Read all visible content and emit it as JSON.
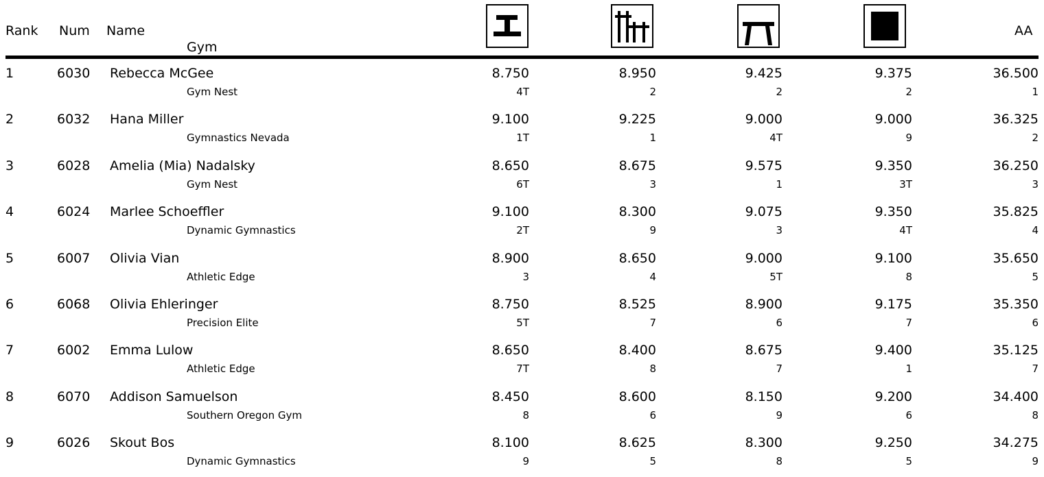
{
  "header": {
    "rank": "Rank",
    "num": "Num",
    "name": "Name",
    "gym": "Gym",
    "aa": "AA",
    "events": [
      {
        "icon": "vault-icon"
      },
      {
        "icon": "uneven-bars-icon"
      },
      {
        "icon": "beam-icon"
      },
      {
        "icon": "floor-icon"
      }
    ]
  },
  "rows": [
    {
      "rank": "1",
      "num": "6030",
      "name": "Rebecca McGee",
      "gym": "Gym Nest",
      "scores": [
        "8.750",
        "8.950",
        "9.425",
        "9.375"
      ],
      "places": [
        "4T",
        "2",
        "2",
        "2"
      ],
      "aa": "36.500",
      "aa_place": "1"
    },
    {
      "rank": "2",
      "num": "6032",
      "name": "Hana Miller",
      "gym": "Gymnastics Nevada",
      "scores": [
        "9.100",
        "9.225",
        "9.000",
        "9.000"
      ],
      "places": [
        "1T",
        "1",
        "4T",
        "9"
      ],
      "aa": "36.325",
      "aa_place": "2"
    },
    {
      "rank": "3",
      "num": "6028",
      "name": "Amelia (Mia) Nadalsky",
      "gym": "Gym Nest",
      "scores": [
        "8.650",
        "8.675",
        "9.575",
        "9.350"
      ],
      "places": [
        "6T",
        "3",
        "1",
        "3T"
      ],
      "aa": "36.250",
      "aa_place": "3"
    },
    {
      "rank": "4",
      "num": "6024",
      "name": "Marlee Schoeffler",
      "gym": "Dynamic Gymnastics",
      "scores": [
        "9.100",
        "8.300",
        "9.075",
        "9.350"
      ],
      "places": [
        "2T",
        "9",
        "3",
        "4T"
      ],
      "aa": "35.825",
      "aa_place": "4"
    },
    {
      "rank": "5",
      "num": "6007",
      "name": "Olivia Vian",
      "gym": "Athletic Edge",
      "scores": [
        "8.900",
        "8.650",
        "9.000",
        "9.100"
      ],
      "places": [
        "3",
        "4",
        "5T",
        "8"
      ],
      "aa": "35.650",
      "aa_place": "5"
    },
    {
      "rank": "6",
      "num": "6068",
      "name": "Olivia Ehleringer",
      "gym": "Precision Elite",
      "scores": [
        "8.750",
        "8.525",
        "8.900",
        "9.175"
      ],
      "places": [
        "5T",
        "7",
        "6",
        "7"
      ],
      "aa": "35.350",
      "aa_place": "6"
    },
    {
      "rank": "7",
      "num": "6002",
      "name": "Emma Lulow",
      "gym": "Athletic Edge",
      "scores": [
        "8.650",
        "8.400",
        "8.675",
        "9.400"
      ],
      "places": [
        "7T",
        "8",
        "7",
        "1"
      ],
      "aa": "35.125",
      "aa_place": "7"
    },
    {
      "rank": "8",
      "num": "6070",
      "name": "Addison Samuelson",
      "gym": "Southern Oregon Gym",
      "scores": [
        "8.450",
        "8.600",
        "8.150",
        "9.200"
      ],
      "places": [
        "8",
        "6",
        "9",
        "6"
      ],
      "aa": "34.400",
      "aa_place": "8"
    },
    {
      "rank": "9",
      "num": "6026",
      "name": "Skout Bos",
      "gym": "Dynamic Gymnastics",
      "scores": [
        "8.100",
        "8.625",
        "8.300",
        "9.250"
      ],
      "places": [
        "9",
        "5",
        "8",
        "5"
      ],
      "aa": "34.275",
      "aa_place": "9"
    }
  ]
}
